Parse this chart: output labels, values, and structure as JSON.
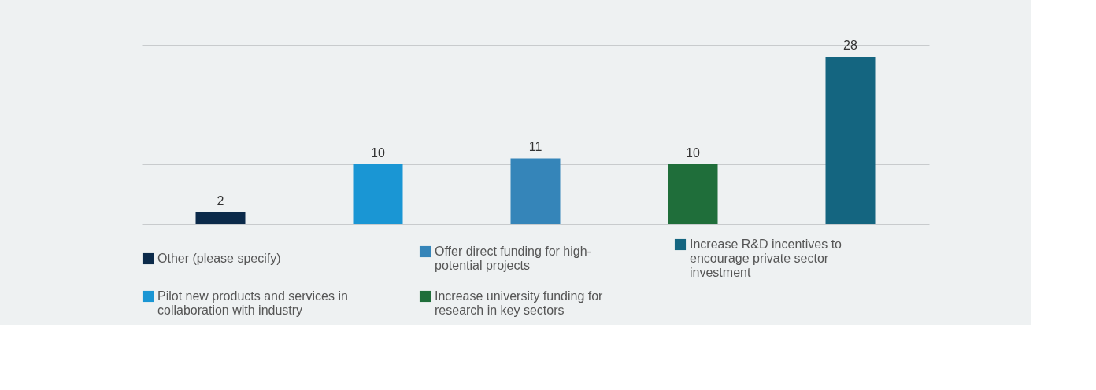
{
  "chart_data": {
    "type": "bar",
    "categories": [
      null,
      null,
      null,
      null,
      null
    ],
    "series": [
      {
        "name": "Other (please specify)",
        "color": "#0b2a4a",
        "values": [
          2,
          null,
          null,
          null,
          null
        ]
      },
      {
        "name": "Pilot new products and services in collaboration with industry",
        "color": "#1a96d4",
        "values": [
          null,
          10,
          null,
          null,
          null
        ]
      },
      {
        "name": "Offer direct funding for high-potential projects",
        "color": "#3585b9",
        "values": [
          null,
          null,
          11,
          null,
          null
        ]
      },
      {
        "name": "Increase university funding for research in key sectors",
        "color": "#1f6e3a",
        "values": [
          null,
          null,
          null,
          10,
          null
        ]
      },
      {
        "name": "Increase R&D incentives to encourage private sector investment",
        "color": "#146580",
        "values": [
          null,
          null,
          null,
          null,
          28
        ]
      }
    ],
    "ylim": [
      0,
      30
    ],
    "yticks": [
      {
        "value": 0,
        "label": null
      },
      {
        "value": 10,
        "label": null
      },
      {
        "value": 20,
        "label": null
      },
      {
        "value": 30,
        "label": null
      }
    ],
    "tick_labels": false,
    "grid": "y",
    "legend": "bottom",
    "data_labels": true,
    "stacked": true
  }
}
